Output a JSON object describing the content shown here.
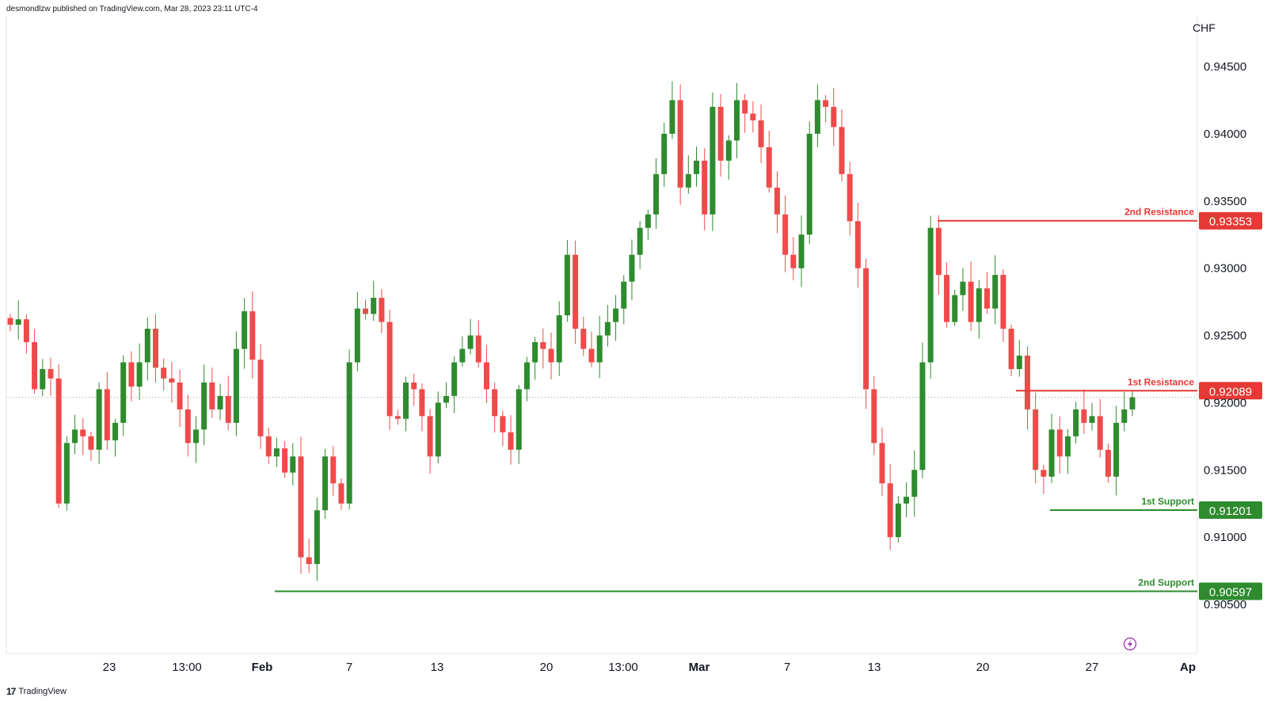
{
  "header": {
    "published": "desmondlzw published on TradingView.com, Mar 28, 2023 23:11 UTC-4"
  },
  "footer": {
    "brand": "TradingView",
    "logo_text": "17"
  },
  "colors": {
    "up": "#2e8b2e",
    "down": "#ef4a4a",
    "resistance": "#e53935",
    "support": "#2e8b2e",
    "grid": "#e0e3eb"
  },
  "lightning_icon": "lightning-icon",
  "chart_data": {
    "type": "candlestick",
    "currency": "CHF",
    "ylim": [
      0.9025,
      0.9475
    ],
    "yticks": [
      {
        "label": "0.94500",
        "value": 0.945
      },
      {
        "label": "0.94000",
        "value": 0.94
      },
      {
        "label": "0.93500",
        "value": 0.935
      },
      {
        "label": "0.93000",
        "value": 0.93
      },
      {
        "label": "0.92500",
        "value": 0.925
      },
      {
        "label": "0.92000",
        "value": 0.92
      },
      {
        "label": "0.91500",
        "value": 0.915
      },
      {
        "label": "0.91000",
        "value": 0.91
      },
      {
        "label": "0.90500",
        "value": 0.905
      }
    ],
    "xticks": [
      {
        "label": "23",
        "bold": false
      },
      {
        "label": "13:00",
        "bold": false
      },
      {
        "label": "Feb",
        "bold": true
      },
      {
        "label": "7",
        "bold": false
      },
      {
        "label": "13",
        "bold": false
      },
      {
        "label": "20",
        "bold": false
      },
      {
        "label": "13:00",
        "bold": false
      },
      {
        "label": "Mar",
        "bold": true
      },
      {
        "label": "7",
        "bold": false
      },
      {
        "label": "13",
        "bold": false
      },
      {
        "label": "20",
        "bold": false
      },
      {
        "label": "27",
        "bold": false
      },
      {
        "label": "Ap",
        "bold": true
      }
    ],
    "current_price": 0.9204,
    "levels": [
      {
        "name": "2nd Resistance",
        "label": "0.93353",
        "value": 0.93353,
        "kind": "resistance"
      },
      {
        "name": "1st Resistance",
        "label": "0.92089",
        "value": 0.92089,
        "kind": "resistance"
      },
      {
        "name": "1st Support",
        "label": "0.91201",
        "value": 0.91201,
        "kind": "support"
      },
      {
        "name": "2nd Support",
        "label": "0.90597",
        "value": 0.90597,
        "kind": "support"
      }
    ],
    "close_path": [
      0.9258,
      0.9262,
      0.9245,
      0.921,
      0.9225,
      0.9218,
      0.9125,
      0.917,
      0.918,
      0.9175,
      0.9165,
      0.921,
      0.9172,
      0.9185,
      0.923,
      0.9212,
      0.923,
      0.9255,
      0.9226,
      0.9218,
      0.9215,
      0.9195,
      0.917,
      0.918,
      0.9215,
      0.9195,
      0.9205,
      0.9185,
      0.924,
      0.9268,
      0.9232,
      0.9175,
      0.916,
      0.9166,
      0.9148,
      0.916,
      0.9085,
      0.908,
      0.912,
      0.916,
      0.914,
      0.9125,
      0.923,
      0.927,
      0.9266,
      0.9278,
      0.926,
      0.919,
      0.9188,
      0.9215,
      0.921,
      0.919,
      0.916,
      0.92,
      0.9205,
      0.923,
      0.924,
      0.925,
      0.923,
      0.921,
      0.919,
      0.9178,
      0.9165,
      0.921,
      0.923,
      0.9245,
      0.924,
      0.923,
      0.9265,
      0.931,
      0.9255,
      0.924,
      0.923,
      0.925,
      0.926,
      0.927,
      0.929,
      0.931,
      0.933,
      0.934,
      0.937,
      0.94,
      0.9425,
      0.936,
      0.937,
      0.938,
      0.934,
      0.942,
      0.938,
      0.9395,
      0.9425,
      0.9415,
      0.941,
      0.939,
      0.936,
      0.934,
      0.931,
      0.93,
      0.9325,
      0.94,
      0.9425,
      0.942,
      0.9405,
      0.937,
      0.9335,
      0.93,
      0.921,
      0.917,
      0.914,
      0.91,
      0.9125,
      0.913,
      0.915,
      0.923,
      0.933,
      0.9295,
      0.926,
      0.928,
      0.929,
      0.926,
      0.9285,
      0.927,
      0.9295,
      0.9255,
      0.9225,
      0.9235,
      0.9195,
      0.915,
      0.9145,
      0.918,
      0.916,
      0.9175,
      0.9195,
      0.9185,
      0.919,
      0.9165,
      0.9145,
      0.9185,
      0.9195,
      0.9204
    ]
  }
}
